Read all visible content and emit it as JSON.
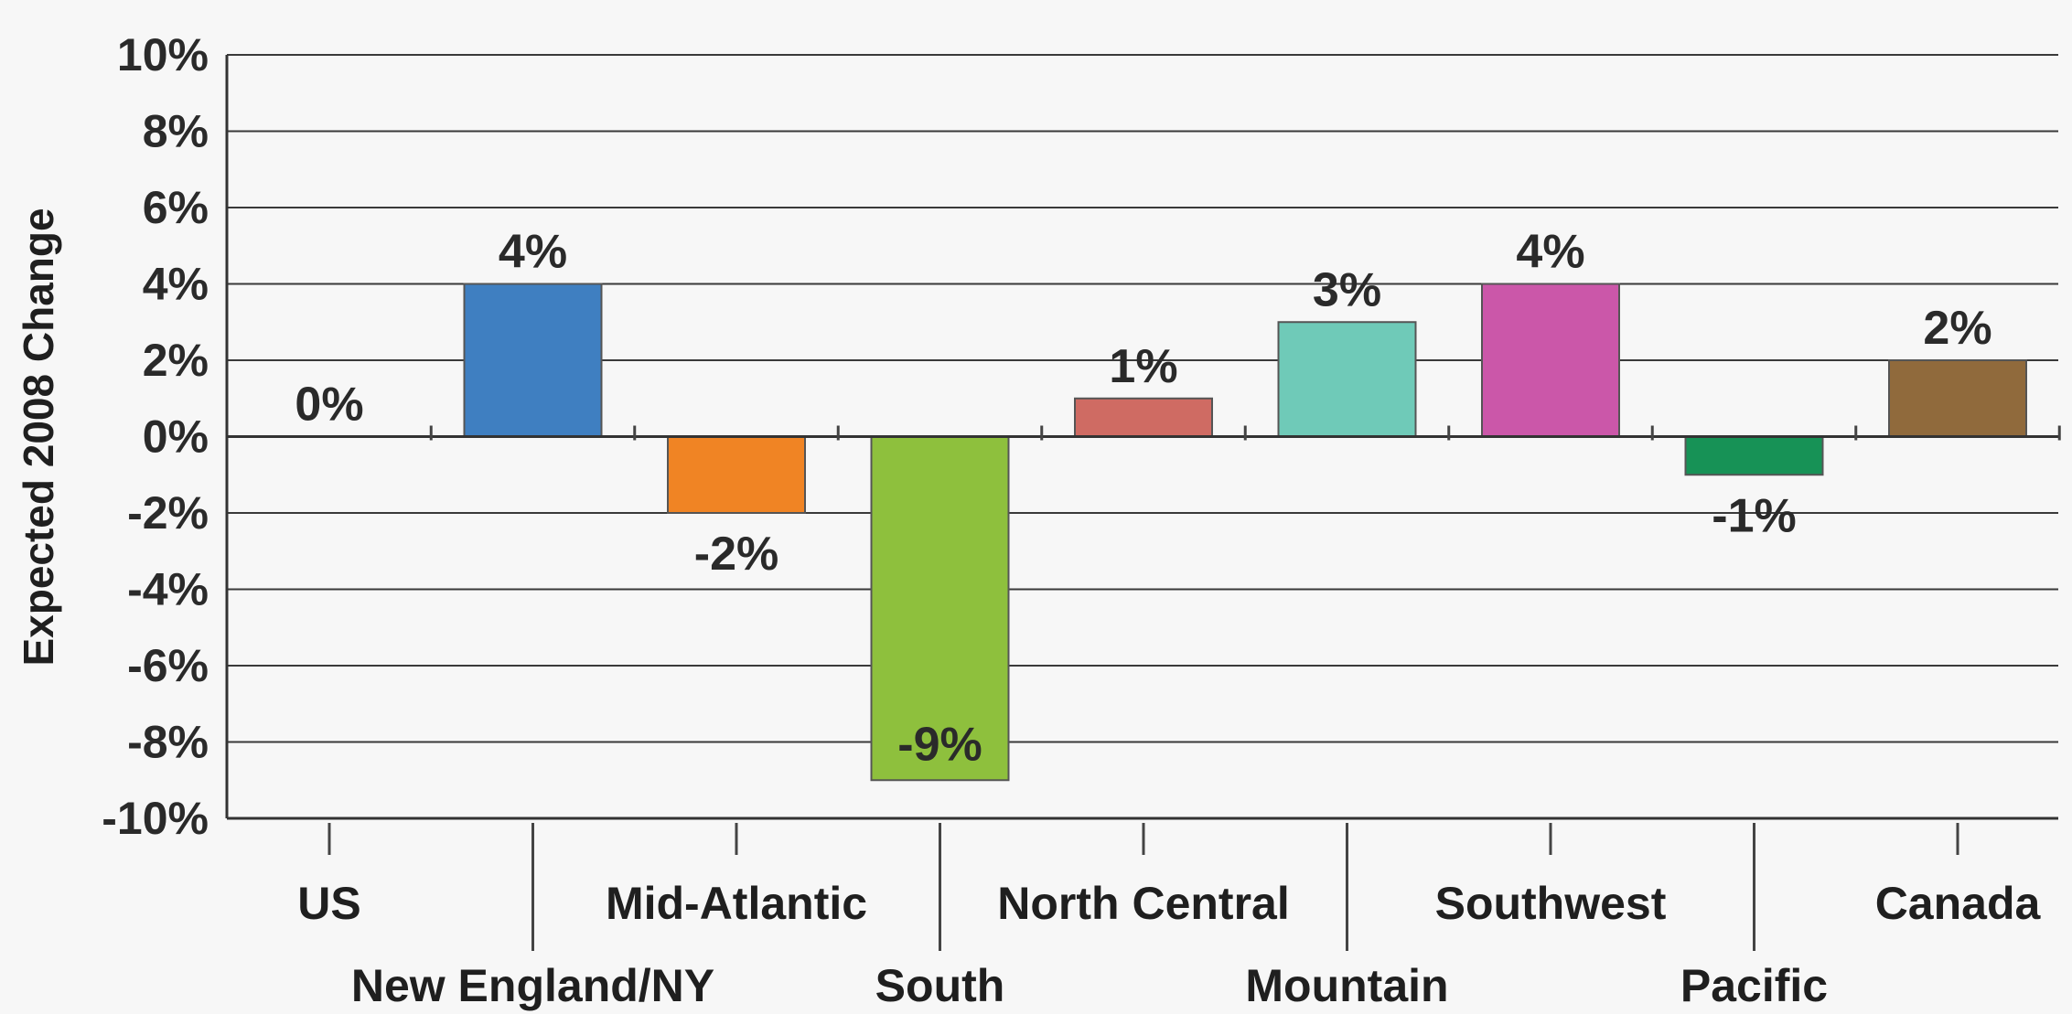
{
  "chart_data": {
    "type": "bar",
    "ylabel": "Expected 2008 Change",
    "xlabel": "",
    "ylim": [
      -10,
      10
    ],
    "yticks": [
      10,
      8,
      6,
      4,
      2,
      0,
      -2,
      -4,
      -6,
      -8,
      -10
    ],
    "ytick_labels": [
      "10%",
      "8%",
      "6%",
      "4%",
      "2%",
      "0%",
      "-2%",
      "-4%",
      "-6%",
      "-8%",
      "-10%"
    ],
    "grid": true,
    "categories": [
      "US",
      "New England/NY",
      "Mid-Atlantic",
      "South",
      "North Central",
      "Mountain",
      "Southwest",
      "Pacific",
      "Canada"
    ],
    "values": [
      0,
      4,
      -2,
      -9,
      1,
      3,
      4,
      -1,
      2
    ],
    "data_labels": [
      "0%",
      "4%",
      "-2%",
      "-9%",
      "1%",
      "3%",
      "4%",
      "-1%",
      "2%"
    ],
    "colors": [
      "#888888",
      "#3f7fc1",
      "#f08424",
      "#8ec03d",
      "#cf6b63",
      "#6fcab8",
      "#cb57a9",
      "#179256",
      "#906a3c"
    ]
  }
}
